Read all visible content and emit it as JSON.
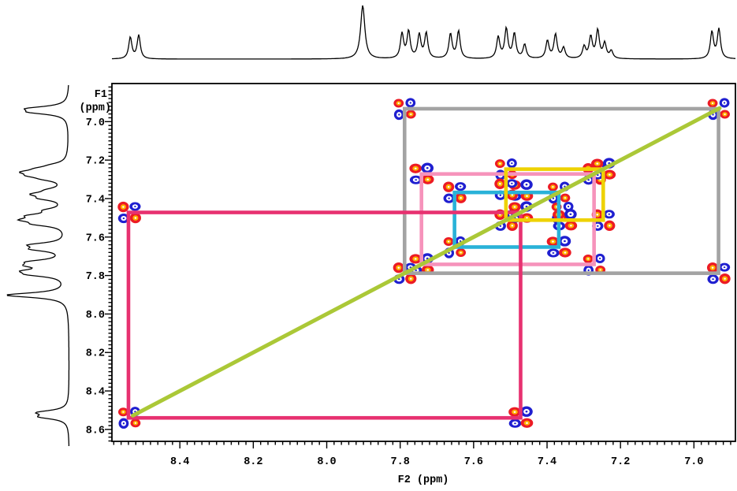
{
  "axes": {
    "f1_label_line1": "F1",
    "f1_label_line2": "(ppm)",
    "f2_label": "F2 (ppm)",
    "x_tick_labels": [
      "8.4",
      "8.2",
      "8.0",
      "7.8",
      "7.6",
      "7.4",
      "7.2",
      "7.0"
    ],
    "y_tick_labels": [
      "7.0",
      "7.2",
      "7.4",
      "7.6",
      "7.8",
      "8.0",
      "8.2",
      "8.4",
      "8.6"
    ]
  },
  "chart_data": {
    "type": "scatter",
    "subtype": "2D COSY NMR contour spectrum with 1D proton traces",
    "x_axis": {
      "label": "F2 (ppm)",
      "range": [
        8.585,
        6.887
      ],
      "inverted": true,
      "major_tick_step": 0.2,
      "minor_tick_step": 0.02,
      "major_ticks": [
        8.4,
        8.2,
        8.0,
        7.8,
        7.6,
        7.4,
        7.2,
        7.0
      ]
    },
    "y_axis": {
      "label": "F1 (ppm)",
      "range": [
        6.802,
        8.662
      ],
      "inverted": false,
      "major_tick_step": 0.2,
      "minor_tick_step": 0.02,
      "major_ticks": [
        7.0,
        7.2,
        7.4,
        7.6,
        7.8,
        8.0,
        8.2,
        8.4,
        8.6
      ]
    },
    "grid": false,
    "diagonal_line": {
      "from_ppm": 8.528,
      "to_ppm": 6.93,
      "color": "#abc837"
    },
    "correlation_boxes": [
      {
        "name": "gray",
        "shift_a": 7.788,
        "shift_b": 6.933,
        "color": "#a3a3a3"
      },
      {
        "name": "pink",
        "shift_a": 7.742,
        "shift_b": 7.272,
        "color": "#f693bb"
      },
      {
        "name": "cyan",
        "shift_a": 7.652,
        "shift_b": 7.368,
        "color": "#29b2d8"
      },
      {
        "name": "magenta",
        "shift_a": 8.54,
        "shift_b": 7.472,
        "color": "#e73170"
      },
      {
        "name": "yellow",
        "shift_a": 7.512,
        "shift_b": 7.247,
        "color": "#eed202"
      }
    ],
    "diagonal_peaks_ppm": [
      8.538,
      7.788,
      7.742,
      7.652,
      7.512,
      7.472,
      7.368,
      7.272,
      7.247,
      6.933
    ],
    "cross_peaks_ppm": [
      [
        8.538,
        7.472
      ],
      [
        7.472,
        8.538
      ],
      [
        7.788,
        6.933
      ],
      [
        6.933,
        7.788
      ],
      [
        7.742,
        7.272
      ],
      [
        7.272,
        7.742
      ],
      [
        7.652,
        7.368
      ],
      [
        7.368,
        7.652
      ],
      [
        7.512,
        7.247
      ],
      [
        7.247,
        7.512
      ],
      [
        7.472,
        7.358
      ],
      [
        7.358,
        7.472
      ],
      [
        7.512,
        7.352
      ],
      [
        7.352,
        7.512
      ]
    ],
    "contour_colors": {
      "positive": "#ec1b24",
      "negative": "#1f1fd0",
      "inner_center": "#ffb000"
    },
    "spectrum_1d_peaks": [
      [
        8.535,
        0.4
      ],
      [
        8.512,
        0.44
      ],
      [
        7.902,
        1.0
      ],
      [
        7.795,
        0.46
      ],
      [
        7.777,
        0.5
      ],
      [
        7.748,
        0.44
      ],
      [
        7.729,
        0.47
      ],
      [
        7.663,
        0.46
      ],
      [
        7.641,
        0.51
      ],
      [
        7.533,
        0.4
      ],
      [
        7.511,
        0.55
      ],
      [
        7.489,
        0.46
      ],
      [
        7.461,
        0.26
      ],
      [
        7.399,
        0.33
      ],
      [
        7.377,
        0.45
      ],
      [
        7.355,
        0.2
      ],
      [
        7.299,
        0.22
      ],
      [
        7.281,
        0.4
      ],
      [
        7.262,
        0.52
      ],
      [
        7.243,
        0.28
      ],
      [
        7.225,
        0.14
      ],
      [
        6.951,
        0.5
      ],
      [
        6.932,
        0.55
      ]
    ]
  }
}
